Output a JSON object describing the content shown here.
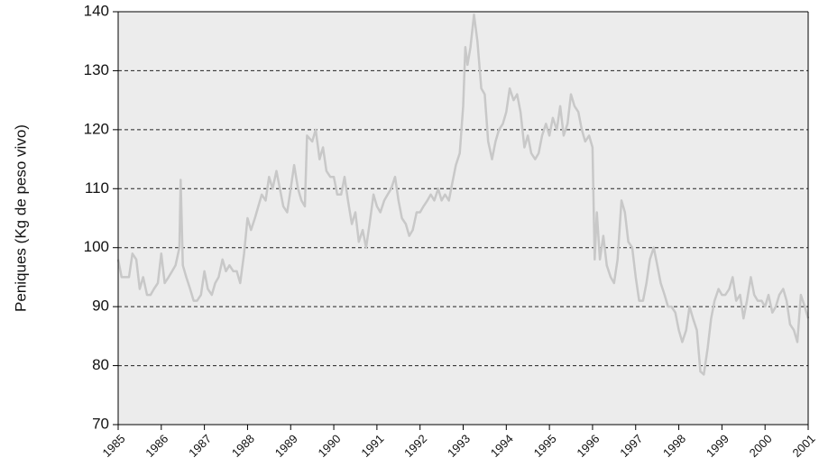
{
  "chart_data": {
    "type": "line",
    "y_label": "Peniques (Kg de peso vivo)",
    "x": [
      1985.0,
      1985.08,
      1985.17,
      1985.25,
      1985.33,
      1985.42,
      1985.5,
      1985.58,
      1985.67,
      1985.75,
      1985.83,
      1985.92,
      1986.0,
      1986.08,
      1986.17,
      1986.25,
      1986.33,
      1986.42,
      1986.45,
      1986.5,
      1986.58,
      1986.67,
      1986.75,
      1986.83,
      1986.92,
      1987.0,
      1987.08,
      1987.17,
      1987.25,
      1987.33,
      1987.42,
      1987.5,
      1987.58,
      1987.67,
      1987.75,
      1987.83,
      1987.92,
      1988.0,
      1988.08,
      1988.17,
      1988.25,
      1988.33,
      1988.42,
      1988.5,
      1988.58,
      1988.67,
      1988.75,
      1988.83,
      1988.92,
      1989.0,
      1989.08,
      1989.17,
      1989.25,
      1989.33,
      1989.38,
      1989.5,
      1989.58,
      1989.67,
      1989.75,
      1989.83,
      1989.92,
      1990.0,
      1990.08,
      1990.17,
      1990.25,
      1990.33,
      1990.42,
      1990.5,
      1990.58,
      1990.67,
      1990.75,
      1990.83,
      1990.92,
      1991.0,
      1991.08,
      1991.17,
      1991.25,
      1991.33,
      1991.42,
      1991.5,
      1991.58,
      1991.67,
      1991.75,
      1991.83,
      1991.92,
      1992.0,
      1992.08,
      1992.17,
      1992.25,
      1992.33,
      1992.42,
      1992.5,
      1992.58,
      1992.67,
      1992.75,
      1992.83,
      1992.92,
      1993.0,
      1993.05,
      1993.1,
      1993.17,
      1993.25,
      1993.33,
      1993.42,
      1993.5,
      1993.58,
      1993.67,
      1993.75,
      1993.83,
      1993.92,
      1994.0,
      1994.08,
      1994.17,
      1994.25,
      1994.33,
      1994.42,
      1994.5,
      1994.58,
      1994.67,
      1994.75,
      1994.83,
      1994.92,
      1995.0,
      1995.08,
      1995.17,
      1995.25,
      1995.33,
      1995.42,
      1995.5,
      1995.58,
      1995.67,
      1995.75,
      1995.83,
      1995.92,
      1996.0,
      1996.05,
      1996.1,
      1996.17,
      1996.25,
      1996.33,
      1996.42,
      1996.5,
      1996.58,
      1996.67,
      1996.75,
      1996.83,
      1996.92,
      1997.0,
      1997.08,
      1997.17,
      1997.25,
      1997.33,
      1997.42,
      1997.5,
      1997.58,
      1997.67,
      1997.75,
      1997.83,
      1997.92,
      1998.0,
      1998.08,
      1998.17,
      1998.25,
      1998.33,
      1998.42,
      1998.5,
      1998.58,
      1998.67,
      1998.75,
      1998.83,
      1998.92,
      1999.0,
      1999.08,
      1999.17,
      1999.25,
      1999.33,
      1999.42,
      1999.5,
      1999.58,
      1999.67,
      1999.75,
      1999.83,
      1999.92,
      2000.0,
      2000.08,
      2000.17,
      2000.25,
      2000.33,
      2000.42,
      2000.5,
      2000.58,
      2000.67,
      2000.75,
      2000.83,
      2000.92,
      2001.0
    ],
    "series": [
      {
        "color": "#c8c8c8",
        "values": [
          98,
          95,
          95,
          95,
          99,
          98,
          93,
          95,
          92,
          92,
          93,
          94,
          99,
          94,
          95,
          96,
          97,
          100,
          111.5,
          97,
          95,
          93,
          91,
          91,
          92,
          96,
          93,
          92,
          94,
          95,
          98,
          96,
          97,
          96,
          96,
          94,
          99,
          105,
          103,
          105,
          107,
          109,
          108,
          112,
          110,
          113,
          110,
          107,
          106,
          110,
          114,
          110,
          108,
          107,
          119,
          118,
          120,
          115,
          117,
          113,
          112,
          112,
          109,
          109,
          112,
          108,
          104,
          106,
          101,
          103,
          100,
          104,
          109,
          107,
          106,
          108,
          109,
          110,
          112,
          108,
          105,
          104,
          102,
          103,
          106,
          106,
          107,
          108,
          109,
          108,
          110,
          108,
          109,
          108,
          111,
          114,
          116,
          124,
          134,
          131,
          134,
          139.5,
          135,
          127,
          126,
          118,
          115,
          118,
          120,
          121,
          123,
          127,
          125,
          126,
          123,
          117,
          119,
          116,
          115,
          116,
          119,
          121,
          119,
          122,
          120,
          124,
          119,
          121,
          126,
          124,
          123,
          120,
          118,
          119,
          117,
          98,
          106,
          98,
          102,
          97,
          95,
          94,
          98,
          108,
          106,
          101,
          100,
          95,
          91,
          91,
          94,
          98,
          100,
          97,
          94,
          92,
          90,
          90,
          89,
          86,
          84,
          86,
          90,
          88,
          86,
          79,
          78.5,
          83,
          88,
          91,
          93,
          92,
          92,
          93,
          95,
          91,
          92,
          88,
          91,
          95,
          92,
          91,
          91,
          90,
          92,
          89,
          90,
          92,
          93,
          91,
          87,
          86,
          84,
          92,
          90,
          88
        ]
      }
    ],
    "xlim": [
      1985,
      2001
    ],
    "xticks": [
      1985,
      1986,
      1987,
      1988,
      1989,
      1990,
      1991,
      1992,
      1993,
      1994,
      1995,
      1996,
      1997,
      1998,
      1999,
      2000,
      2001
    ],
    "ylim": [
      70,
      140
    ],
    "yticks": [
      70,
      80,
      90,
      100,
      110,
      120,
      130,
      140
    ],
    "grid": true
  }
}
